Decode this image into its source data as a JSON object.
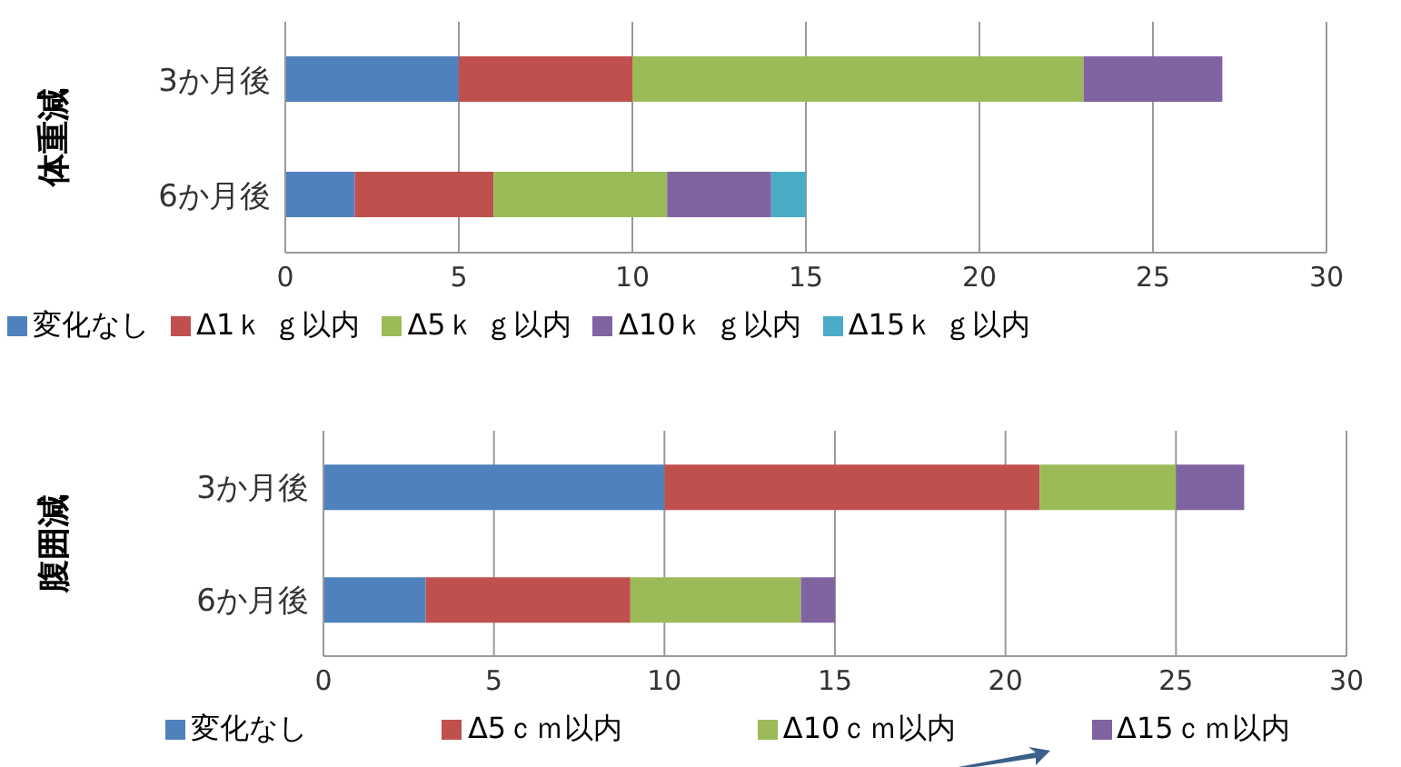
{
  "chart_data": [
    {
      "type": "bar",
      "orientation": "horizontal",
      "stacked": true,
      "ylabel": "体重減",
      "categories": [
        "3か月後",
        "6か月後"
      ],
      "series": [
        {
          "name": "変化なし",
          "color": "#4f81bd",
          "values": [
            5,
            2
          ]
        },
        {
          "name": "Δ1ｋ ｇ以内",
          "color": "#c0504d",
          "values": [
            5,
            4
          ]
        },
        {
          "name": "Δ5ｋ ｇ以内",
          "color": "#9bbb59",
          "values": [
            13,
            5
          ]
        },
        {
          "name": "Δ10ｋ ｇ以内",
          "color": "#8064a2",
          "values": [
            4,
            3
          ]
        },
        {
          "name": "Δ15ｋ ｇ以内",
          "color": "#4bacc6",
          "values": [
            null,
            1
          ]
        }
      ],
      "xlim": [
        0,
        30
      ],
      "xticks": [
        0,
        5,
        10,
        15,
        20,
        25,
        30
      ],
      "grid": "x",
      "legend": "bottom"
    },
    {
      "type": "bar",
      "orientation": "horizontal",
      "stacked": true,
      "ylabel": "腹囲減",
      "categories": [
        "3か月後",
        "6か月後"
      ],
      "series": [
        {
          "name": "変化なし",
          "color": "#4f81bd",
          "values": [
            10,
            3
          ]
        },
        {
          "name": "Δ5ｃｍ以内",
          "color": "#c0504d",
          "values": [
            11,
            6
          ]
        },
        {
          "name": "Δ10ｃｍ以内",
          "color": "#9bbb59",
          "values": [
            4,
            5
          ]
        },
        {
          "name": "Δ15ｃｍ以内",
          "color": "#8064a2",
          "values": [
            2,
            1
          ]
        }
      ],
      "xlim": [
        0,
        30
      ],
      "xticks": [
        0,
        5,
        10,
        15,
        20,
        25,
        30
      ],
      "grid": "x",
      "legend": "bottom"
    }
  ]
}
